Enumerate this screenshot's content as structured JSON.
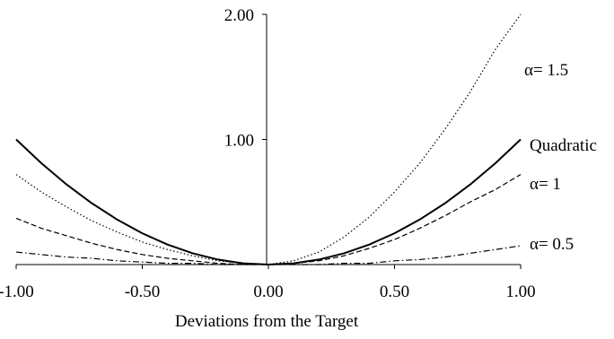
{
  "chart_data": {
    "type": "line",
    "xlabel": "Deviations from the Target",
    "ylabel": "",
    "title": "",
    "xlim": [
      -1.0,
      1.0
    ],
    "ylim": [
      0,
      2.0
    ],
    "x_ticks": [
      "-1.00",
      "-0.50",
      "0.00",
      "0.50",
      "1.00"
    ],
    "y_ticks": [
      "1.00",
      "2.00"
    ],
    "grid": false,
    "legend": "inline labels at right end of curves",
    "series": [
      {
        "name": "α= 1.5",
        "style": "dotted",
        "x": [
          -1.0,
          -0.9,
          -0.8,
          -0.7,
          -0.6,
          -0.5,
          -0.4,
          -0.3,
          -0.2,
          -0.1,
          0.0,
          0.1,
          0.2,
          0.3,
          0.4,
          0.5,
          0.6,
          0.7,
          0.8,
          0.9,
          1.0
        ],
        "values": [
          0.72,
          0.58,
          0.46,
          0.35,
          0.26,
          0.18,
          0.12,
          0.07,
          0.03,
          0.01,
          0.0,
          0.03,
          0.1,
          0.22,
          0.38,
          0.58,
          0.81,
          1.08,
          1.38,
          1.72,
          2.0
        ]
      },
      {
        "name": "Quadratic",
        "style": "solid",
        "x": [
          -1.0,
          -0.9,
          -0.8,
          -0.7,
          -0.6,
          -0.5,
          -0.4,
          -0.3,
          -0.2,
          -0.1,
          0.0,
          0.1,
          0.2,
          0.3,
          0.4,
          0.5,
          0.6,
          0.7,
          0.8,
          0.9,
          1.0
        ],
        "values": [
          1.0,
          0.81,
          0.64,
          0.49,
          0.36,
          0.25,
          0.16,
          0.09,
          0.04,
          0.01,
          0.0,
          0.01,
          0.04,
          0.09,
          0.16,
          0.25,
          0.36,
          0.49,
          0.64,
          0.81,
          1.0
        ]
      },
      {
        "name": "α= 1",
        "style": "dashed",
        "x": [
          -1.0,
          -0.9,
          -0.8,
          -0.7,
          -0.6,
          -0.5,
          -0.4,
          -0.3,
          -0.2,
          -0.1,
          0.0,
          0.1,
          0.2,
          0.3,
          0.4,
          0.5,
          0.6,
          0.7,
          0.8,
          0.9,
          1.0
        ],
        "values": [
          0.37,
          0.29,
          0.23,
          0.17,
          0.12,
          0.08,
          0.05,
          0.03,
          0.01,
          0.0,
          0.0,
          0.01,
          0.03,
          0.07,
          0.13,
          0.2,
          0.29,
          0.39,
          0.5,
          0.6,
          0.72
        ]
      },
      {
        "name": "α= 0.5",
        "style": "dashdot",
        "x": [
          -1.0,
          -0.9,
          -0.8,
          -0.7,
          -0.6,
          -0.5,
          -0.4,
          -0.3,
          -0.2,
          -0.1,
          0.0,
          0.1,
          0.2,
          0.3,
          0.4,
          0.5,
          0.6,
          0.7,
          0.8,
          0.9,
          1.0
        ],
        "values": [
          0.1,
          0.08,
          0.06,
          0.05,
          0.03,
          0.02,
          0.01,
          0.01,
          0.0,
          0.0,
          0.0,
          0.0,
          0.0,
          0.01,
          0.01,
          0.03,
          0.04,
          0.06,
          0.09,
          0.12,
          0.15
        ]
      }
    ]
  }
}
